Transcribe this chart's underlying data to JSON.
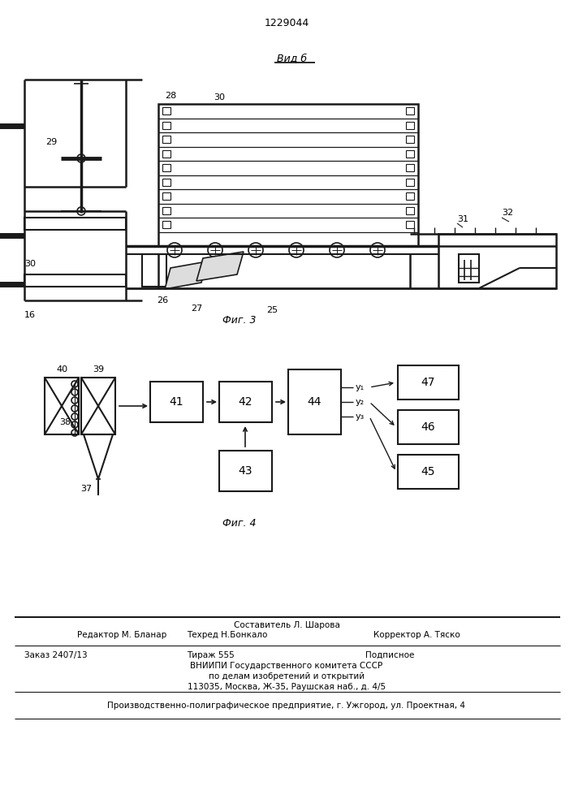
{
  "title": "1229044",
  "fig3_label": "Вид б",
  "fig3_caption": "Фиг. 3",
  "fig4_caption": "Фиг. 4",
  "footer_sestavitel": "Составитель Л. Шарова",
  "footer_redaktor": "Редактор М. Бланар",
  "footer_tehred": "Техред Н.Бонкало",
  "footer_korrektor": "Корректор А. Тяско",
  "footer_zakaz": "Заказ 2407/13",
  "footer_tirazh": "Тираж 555",
  "footer_podpisnoe": "Подписное",
  "footer_vniip": "ВНИИПИ Государственного комитета СССР",
  "footer_po": "по делам изобретений и открытий",
  "footer_addr": "113035, Москва, Ж-35, Раушская наб., д. 4/5",
  "footer_uzhgorod": "Производственно-полиграфическое предприятие, г. Ужгород, ул. Проектная, 4",
  "bg_color": "#ffffff",
  "line_color": "#1a1a1a"
}
